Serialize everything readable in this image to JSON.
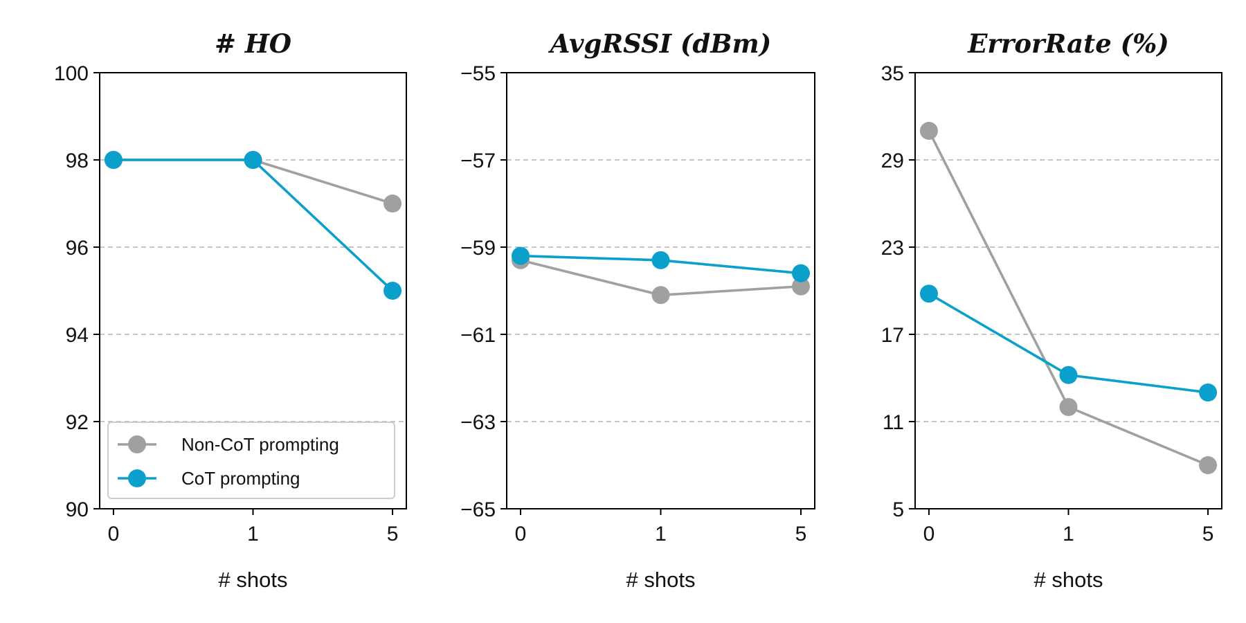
{
  "chart_data": [
    {
      "type": "line",
      "title": "# HO",
      "xlabel": "# shots",
      "ylabel": "",
      "categories": [
        "0",
        "1",
        "5"
      ],
      "ylim": [
        90,
        100
      ],
      "yticks": [
        90,
        92,
        94,
        96,
        98,
        100
      ],
      "grid": "horizontal dashed",
      "legend_location": "lower-left",
      "series": [
        {
          "name": "Non-CoT prompting",
          "color": "#a0a0a0",
          "values": [
            98,
            98,
            97
          ]
        },
        {
          "name": "CoT prompting",
          "color": "#0b9fcc",
          "values": [
            98,
            98,
            95
          ]
        }
      ]
    },
    {
      "type": "line",
      "title": "AvgRSSI (dBm)",
      "xlabel": "# shots",
      "ylabel": "",
      "categories": [
        "0",
        "1",
        "5"
      ],
      "ylim": [
        -65,
        -55
      ],
      "yticks": [
        -65,
        -63,
        -61,
        -59,
        -57,
        -55
      ],
      "grid": "horizontal dashed",
      "series": [
        {
          "name": "Non-CoT prompting",
          "color": "#a0a0a0",
          "values": [
            -59.3,
            -60.1,
            -59.9
          ]
        },
        {
          "name": "CoT prompting",
          "color": "#0b9fcc",
          "values": [
            -59.2,
            -59.3,
            -59.6
          ]
        }
      ]
    },
    {
      "type": "line",
      "title": "ErrorRate (%)",
      "xlabel": "# shots",
      "ylabel": "",
      "categories": [
        "0",
        "1",
        "5"
      ],
      "ylim": [
        5,
        35
      ],
      "yticks": [
        5,
        11,
        17,
        23,
        29,
        35
      ],
      "grid": "horizontal dashed",
      "series": [
        {
          "name": "Non-CoT prompting",
          "color": "#a0a0a0",
          "values": [
            31,
            12,
            8
          ]
        },
        {
          "name": "CoT prompting",
          "color": "#0b9fcc",
          "values": [
            19.8,
            14.2,
            13
          ]
        }
      ]
    }
  ],
  "tick_label_strings": [
    [
      "90",
      "92",
      "94",
      "96",
      "98",
      "100"
    ],
    [
      "−65",
      "−63",
      "−61",
      "−59",
      "−57",
      "−55"
    ],
    [
      "5",
      "11",
      "17",
      "23",
      "29",
      "35"
    ]
  ]
}
